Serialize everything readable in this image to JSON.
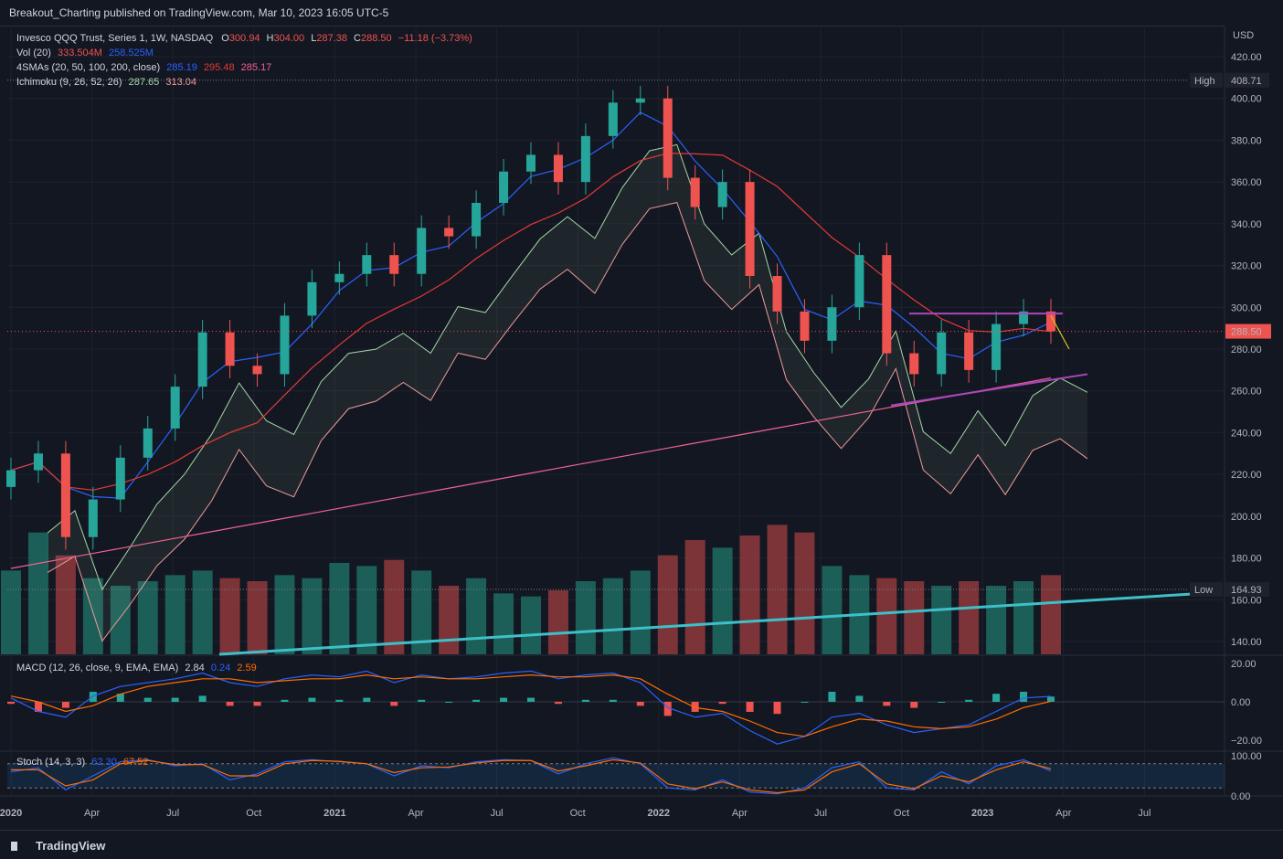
{
  "header": {
    "publish_line": "Breakout_Charting published on TradingView.com, Mar 10, 2023 16:05 UTC-5"
  },
  "legend": {
    "symbol": "Invesco QQQ Trust, Series 1, 1W, NASDAQ",
    "o_label": "O",
    "o_val": "300.94",
    "h_label": "H",
    "h_val": "304.00",
    "l_label": "L",
    "l_val": "287.38",
    "c_label": "C",
    "c_val": "288.50",
    "change": "−11.18 (−3.73%)",
    "vol_label": "Vol (20)",
    "vol_v1": "333.504M",
    "vol_v2": "258.525M",
    "sma_label": "4SMAs (20, 50, 100, 200, close)",
    "sma_v1": "285.19",
    "sma_v2": "295.48",
    "sma_v3": "285.17",
    "ichi_label": "Ichimoku (9, 26, 52, 26)",
    "ichi_v1": "287.65",
    "ichi_v2": "313.04",
    "macd_label": "MACD (12, 26, close, 9, EMA, EMA)",
    "macd_v1": "2.84",
    "macd_v2": "0.24",
    "macd_v3": "2.59",
    "stoch_label": "Stoch (14, 3, 3)",
    "stoch_v1": "62.30",
    "stoch_v2": "67.52"
  },
  "axis": {
    "currency": "USD",
    "high_label": "High",
    "high_val": "408.71",
    "low_label": "Low",
    "low_val": "164.93",
    "price_tag": "288.50",
    "price_ticks": [
      "420.00",
      "400.00",
      "380.00",
      "360.00",
      "340.00",
      "320.00",
      "300.00",
      "280.00",
      "260.00",
      "240.00",
      "220.00",
      "200.00",
      "180.00",
      "160.00",
      "140.00"
    ],
    "macd_ticks": [
      "20.00",
      "0.00",
      "−20.00"
    ],
    "stoch_ticks": [
      "100.00",
      "0.00"
    ],
    "x_ticks": [
      "2020",
      "Apr",
      "Jul",
      "Oct",
      "2021",
      "Apr",
      "Jul",
      "Oct",
      "2022",
      "Apr",
      "Jul",
      "Oct",
      "2023",
      "Apr",
      "Jul"
    ]
  },
  "colors": {
    "up": "#26a69a",
    "down": "#ef5350",
    "sma20": "#2962ff",
    "sma50": "#e53935",
    "sma200": "#f06292",
    "cloud_up": "#a5d6a7",
    "cloud_dn": "#ef9a9a",
    "trend": "#3ec0c9",
    "pattern": "#ab47bc"
  },
  "footer": {
    "brand": "TradingView"
  },
  "chart_data": [
    {
      "type": "candlestick",
      "title": "Invesco QQQ Trust, Series 1, 1W, NASDAQ",
      "ylabel": "USD",
      "x": [
        "2020-01",
        "2020-02",
        "2020-03",
        "2020-04",
        "2020-05",
        "2020-06",
        "2020-07",
        "2020-08",
        "2020-09",
        "2020-10",
        "2020-11",
        "2020-12",
        "2021-01",
        "2021-02",
        "2021-03",
        "2021-04",
        "2021-05",
        "2021-06",
        "2021-07",
        "2021-08",
        "2021-09",
        "2021-10",
        "2021-11",
        "2021-12",
        "2022-01",
        "2022-02",
        "2022-03",
        "2022-04",
        "2022-05",
        "2022-06",
        "2022-07",
        "2022-08",
        "2022-09",
        "2022-10",
        "2022-11",
        "2022-12",
        "2023-01",
        "2023-02",
        "2023-03"
      ],
      "close": [
        222,
        230,
        190,
        208,
        228,
        242,
        262,
        288,
        272,
        268,
        296,
        312,
        316,
        325,
        316,
        338,
        334,
        350,
        365,
        373,
        360,
        382,
        398,
        400,
        362,
        348,
        360,
        315,
        298,
        284,
        300,
        325,
        278,
        268,
        288,
        270,
        292,
        298,
        288.5
      ],
      "series": [
        {
          "name": "Vol (20)",
          "values": [
            175,
            200,
            185,
            170,
            165,
            168,
            172,
            175,
            170,
            168,
            172,
            170,
            180,
            178,
            182,
            175,
            165,
            170,
            160,
            158,
            162,
            168,
            170,
            175,
            185,
            195,
            190,
            198,
            205,
            200,
            178,
            172,
            170,
            168,
            165,
            168,
            165,
            168,
            172
          ]
        }
      ],
      "annotations": {
        "high": 408.71,
        "low": 164.93,
        "last": 288.5,
        "resistance": 297,
        "support_start": 253,
        "support_end": 268
      },
      "ylim": [
        130,
        430
      ]
    },
    {
      "type": "line",
      "title": "MACD (12, 26, close, 9, EMA, EMA)",
      "series": [
        {
          "name": "MACD",
          "values": [
            2,
            -5,
            -8,
            3,
            8,
            10,
            12,
            15,
            10,
            8,
            12,
            14,
            13,
            16,
            10,
            14,
            12,
            13,
            15,
            16,
            12,
            14,
            15,
            10,
            -3,
            -8,
            -6,
            -15,
            -22,
            -18,
            -8,
            -6,
            -12,
            -16,
            -14,
            -12,
            -5,
            2,
            2.84
          ]
        },
        {
          "name": "Signal",
          "values": [
            3,
            0,
            -5,
            -2,
            4,
            8,
            10,
            12,
            12,
            10,
            11,
            12,
            12,
            14,
            12,
            13,
            12,
            12,
            13,
            14,
            13,
            13,
            14,
            12,
            4,
            -3,
            -5,
            -10,
            -16,
            -18,
            -13,
            -9,
            -10,
            -13,
            -14,
            -13,
            -9,
            -3,
            0.24
          ]
        }
      ],
      "ylim": [
        -25,
        25
      ]
    },
    {
      "type": "line",
      "title": "Stoch (14, 3, 3)",
      "series": [
        {
          "name": "%K",
          "values": [
            60,
            70,
            15,
            50,
            85,
            90,
            75,
            80,
            40,
            55,
            85,
            90,
            85,
            80,
            50,
            75,
            70,
            85,
            90,
            88,
            55,
            80,
            95,
            80,
            20,
            15,
            40,
            10,
            5,
            20,
            70,
            85,
            20,
            15,
            60,
            30,
            75,
            90,
            62.3
          ]
        },
        {
          "name": "%D",
          "values": [
            65,
            65,
            25,
            40,
            80,
            88,
            78,
            78,
            50,
            50,
            80,
            88,
            86,
            80,
            58,
            70,
            72,
            82,
            88,
            88,
            62,
            75,
            90,
            82,
            30,
            18,
            35,
            15,
            8,
            15,
            60,
            80,
            30,
            18,
            50,
            35,
            65,
            85,
            67.52
          ]
        }
      ],
      "ylim": [
        0,
        100
      ]
    }
  ]
}
